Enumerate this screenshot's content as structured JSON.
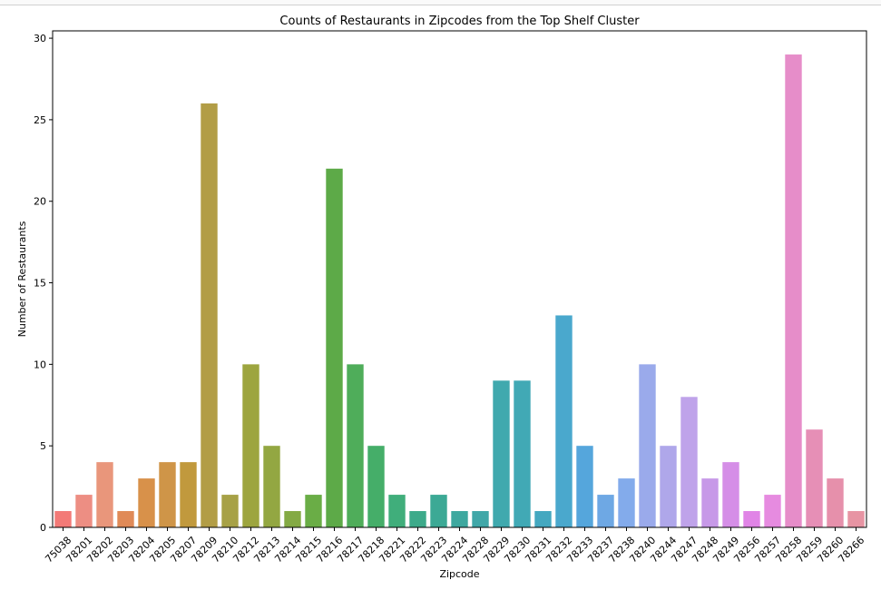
{
  "chart_data": {
    "type": "bar",
    "title": "Counts of Restaurants in Zipcodes from the Top Shelf Cluster",
    "xlabel": "Zipcode",
    "ylabel": "Number of Restaurants",
    "ylim": [
      0,
      30.45
    ],
    "yticks": [
      0,
      5,
      10,
      15,
      20,
      25,
      30
    ],
    "categories": [
      "75038",
      "78201",
      "78202",
      "78203",
      "78204",
      "78205",
      "78207",
      "78209",
      "78210",
      "78212",
      "78213",
      "78214",
      "78215",
      "78216",
      "78217",
      "78218",
      "78221",
      "78222",
      "78223",
      "78224",
      "78228",
      "78229",
      "78230",
      "78231",
      "78232",
      "78233",
      "78237",
      "78238",
      "78240",
      "78244",
      "78247",
      "78248",
      "78249",
      "78256",
      "78257",
      "78258",
      "78259",
      "78260",
      "78266"
    ],
    "values": [
      1,
      2,
      4,
      1,
      3,
      4,
      4,
      26,
      2,
      10,
      5,
      1,
      2,
      22,
      10,
      5,
      2,
      1,
      2,
      1,
      1,
      9,
      9,
      1,
      13,
      5,
      2,
      3,
      10,
      5,
      8,
      3,
      4,
      1,
      2,
      29,
      6,
      3,
      1
    ],
    "colors": [
      "#f37a77",
      "#ed8e83",
      "#e9967b",
      "#e08a57",
      "#d8914a",
      "#cf9548",
      "#c1993d",
      "#b29d46",
      "#a7a146",
      "#9da53f",
      "#93a742",
      "#84aa44",
      "#6aad46",
      "#5daa48",
      "#4fad5a",
      "#45ae69",
      "#40ae7b",
      "#3daa8a",
      "#3ca995",
      "#3ea89f",
      "#40a7a8",
      "#40a9ae",
      "#41a9b5",
      "#44a8c0",
      "#4aa8cd",
      "#55a6dc",
      "#6ea8e4",
      "#83abeb",
      "#9aaaeb",
      "#afa7ea",
      "#bfa3ea",
      "#c799e8",
      "#d58ee7",
      "#e084e6",
      "#e68be0",
      "#e68dc9",
      "#e68fb6",
      "#e690ab",
      "#e794a3"
    ],
    "grid": false,
    "legend": "none"
  }
}
